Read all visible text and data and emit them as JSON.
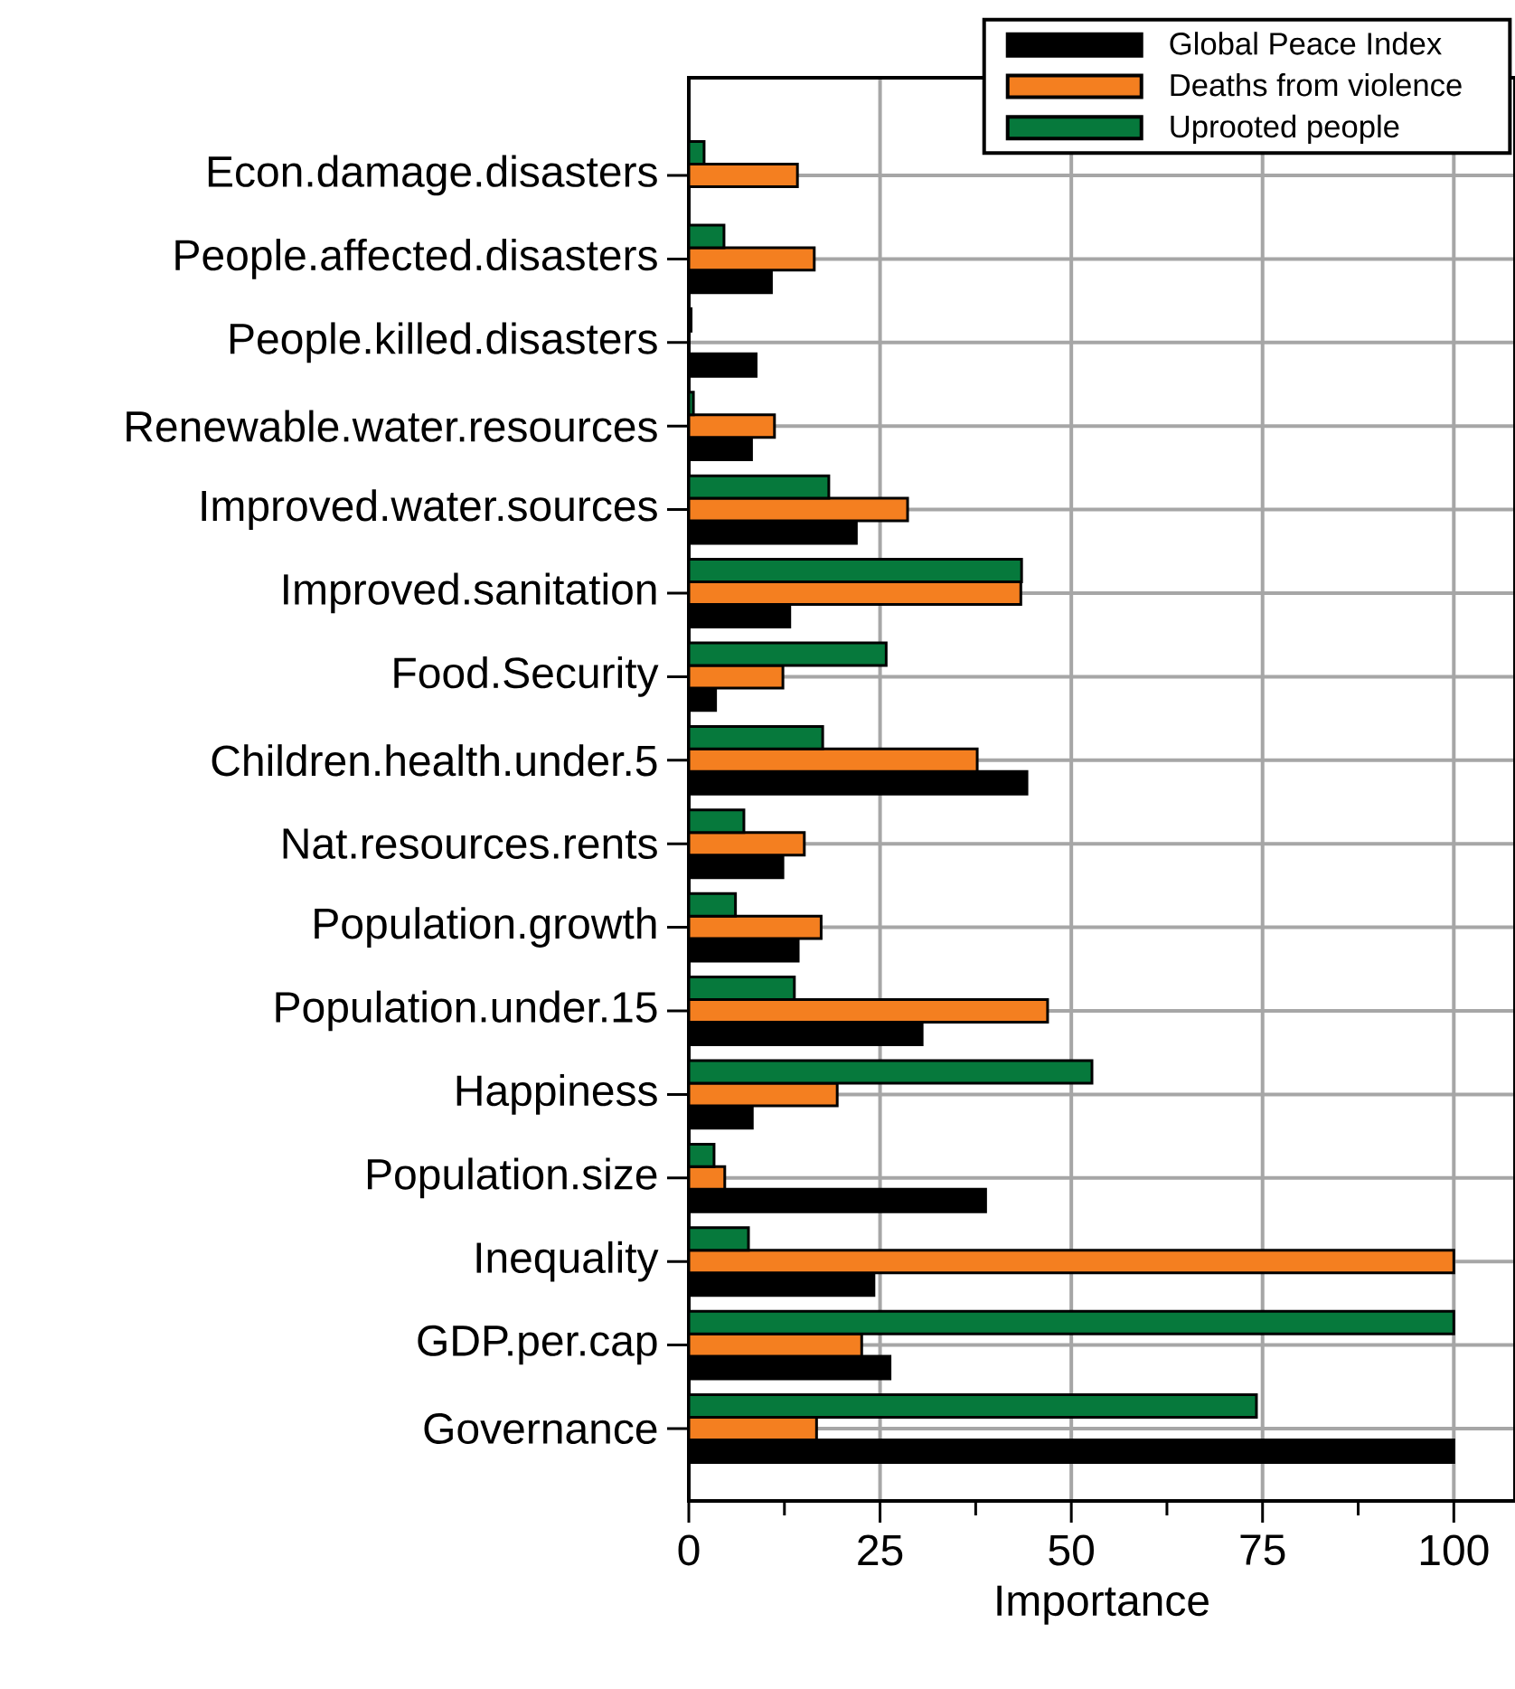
{
  "chart_data": {
    "type": "bar",
    "orientation": "horizontal",
    "xlabel": "Importance",
    "categories": [
      "Econ.damage.disasters",
      "People.affected.disasters",
      "People.killed.disasters",
      "Renewable.water.resources",
      "Improved.water.sources",
      "Improved.sanitation",
      "Food.Security",
      "Children.health.under.5",
      "Nat.resources.rents",
      "Population.growth",
      "Population.under.15",
      "Happiness",
      "Population.size",
      "Inequality",
      "GDP.per.cap",
      "Governance"
    ],
    "series": [
      {
        "name": "Global Peace Index",
        "color": "#000000",
        "values": [
          null,
          10.8,
          8.8,
          8.2,
          21.9,
          13.2,
          3.5,
          44.2,
          12.3,
          14.3,
          30.5,
          8.3,
          38.8,
          24.2,
          26.3,
          100
        ]
      },
      {
        "name": "Deaths from violence",
        "color": "#f47f20",
        "values": [
          14.2,
          16.4,
          null,
          11.2,
          28.6,
          43.4,
          12.3,
          37.7,
          15.1,
          17.3,
          46.9,
          19.4,
          4.7,
          100,
          22.6,
          16.7
        ]
      },
      {
        "name": "Uprooted people",
        "color": "#06793c",
        "values": [
          2.0,
          4.6,
          0.3,
          0.6,
          18.3,
          43.5,
          25.8,
          17.5,
          7.2,
          6.1,
          13.8,
          52.7,
          3.3,
          7.8,
          100,
          74.2
        ]
      }
    ],
    "xlim": [
      0,
      108
    ],
    "xticks": [
      0,
      {
        "value": 12.5,
        "label": null
      },
      25,
      {
        "value": 37.5,
        "label": null
      },
      50,
      {
        "value": 62.5,
        "label": null
      },
      75,
      {
        "value": 87.5,
        "label": null
      },
      100
    ],
    "grid": true,
    "legend": "top right"
  }
}
